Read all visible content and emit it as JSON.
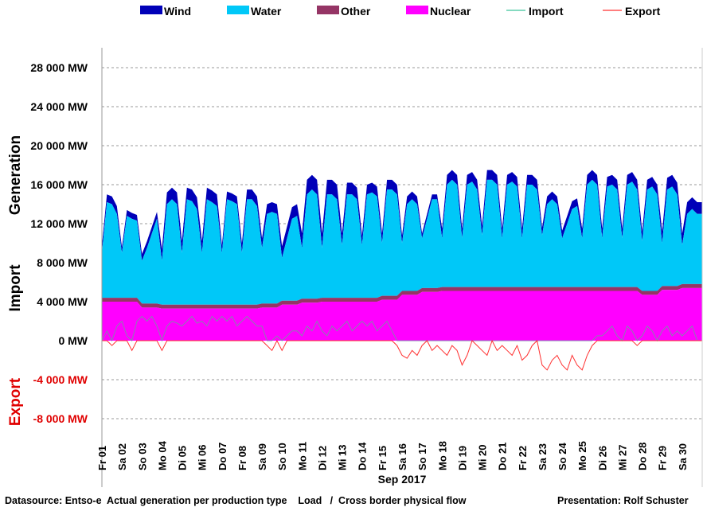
{
  "chart_data": {
    "type": "area",
    "xlabel": "Sep 2017",
    "y_unit": "MW",
    "ylim": [
      -8000,
      28000
    ],
    "yticks": [
      -8000,
      -4000,
      0,
      4000,
      8000,
      12000,
      16000,
      20000,
      24000,
      28000
    ],
    "ytick_labels": [
      "-8 000 MW",
      "-4 000 MW",
      "0 MW",
      "4 000 MW",
      "8 000 MW",
      "12 000 MW",
      "16 000 MW",
      "20 000 MW",
      "24 000 MW",
      "28 000 MW"
    ],
    "grid": true,
    "y_section_labels": {
      "generation": "Generation",
      "import": "Import",
      "export": "Export"
    },
    "day_labels": [
      "Fr 01",
      "Sa 02",
      "So 03",
      "Mo 04",
      "Di 05",
      "Mi 06",
      "Do 07",
      "Fr 08",
      "Sa 09",
      "So 10",
      "Mo 11",
      "Di 12",
      "Mi 13",
      "Do 14",
      "Fr 15",
      "Sa 16",
      "So 17",
      "Mo 18",
      "Di 19",
      "Mi 20",
      "Do 21",
      "Fr 22",
      "Sa 23",
      "So 24",
      "Mo 25",
      "Di 26",
      "Mi 27",
      "Do 28",
      "Fr 29",
      "Sa 30"
    ],
    "sample_hours": [
      0,
      6,
      12,
      18
    ],
    "legend": [
      {
        "name": "Wind",
        "kind": "area",
        "color": "#0000b8"
      },
      {
        "name": "Water",
        "kind": "area",
        "color": "#00c8f8"
      },
      {
        "name": "Other",
        "kind": "area",
        "color": "#953565"
      },
      {
        "name": "Nuclear",
        "kind": "area",
        "color": "#ff00ff"
      },
      {
        "name": "Import",
        "kind": "line",
        "color": "#3cc39a"
      },
      {
        "name": "Export",
        "kind": "line",
        "color": "#ff3030"
      }
    ],
    "legend_position": "top",
    "series": {
      "nuclear_daily": [
        4000,
        4000,
        3400,
        3300,
        3300,
        3300,
        3300,
        3300,
        3400,
        3700,
        3900,
        4000,
        4000,
        4000,
        4200,
        4700,
        5000,
        5100,
        5100,
        5100,
        5100,
        5100,
        5100,
        5100,
        5100,
        5100,
        5100,
        4700,
        5200,
        5400
      ],
      "other_daily": [
        400,
        400,
        400,
        400,
        400,
        400,
        400,
        400,
        400,
        400,
        400,
        400,
        400,
        400,
        400,
        400,
        400,
        400,
        400,
        400,
        400,
        400,
        400,
        400,
        400,
        400,
        400,
        400,
        400,
        400
      ],
      "water_stack_top_6h": [
        9000,
        14200,
        14000,
        13000,
        9000,
        12800,
        12500,
        12300,
        8200,
        9500,
        11000,
        12500,
        8200,
        14000,
        14500,
        14000,
        9000,
        14500,
        14300,
        13500,
        9000,
        14500,
        14200,
        13800,
        9000,
        14500,
        14300,
        14000,
        9000,
        14500,
        14500,
        13800,
        9500,
        13000,
        13200,
        13000,
        8500,
        10500,
        12500,
        12800,
        9500,
        15000,
        15500,
        15000,
        9500,
        15000,
        15000,
        14500,
        9800,
        15000,
        15000,
        14500,
        9800,
        15000,
        15200,
        14800,
        10000,
        15500,
        15500,
        15000,
        10000,
        14000,
        14500,
        14000,
        10500,
        12500,
        14500,
        14500,
        10500,
        16000,
        16500,
        16000,
        10500,
        16000,
        16300,
        15500,
        10800,
        16500,
        16500,
        16000,
        10500,
        16000,
        16300,
        15800,
        10500,
        16000,
        16000,
        15500,
        10800,
        14000,
        14500,
        14000,
        10500,
        12000,
        13500,
        13800,
        10500,
        16000,
        16500,
        16000,
        10500,
        15800,
        16000,
        15500,
        10500,
        16000,
        16300,
        15500,
        10200,
        15500,
        15800,
        15000,
        10000,
        15500,
        15800,
        15000,
        9800,
        13000,
        13500,
        13000
      ],
      "wind_daily": [
        800,
        600,
        700,
        1200,
        1200,
        1200,
        800,
        1000,
        1000,
        1200,
        1500,
        1500,
        1200,
        1000,
        1000,
        800,
        500,
        1000,
        1000,
        1000,
        1000,
        1000,
        800,
        800,
        1000,
        1000,
        1000,
        1000,
        1200,
        1200
      ],
      "net_flow_6h": [
        0,
        1000,
        -500,
        1500,
        2000,
        500,
        -1000,
        2000,
        2500,
        2000,
        2500,
        1500,
        -1000,
        1500,
        2000,
        1800,
        1500,
        2000,
        2500,
        1800,
        2000,
        1500,
        2500,
        2000,
        2500,
        2000,
        2500,
        1500,
        2000,
        2500,
        2000,
        1500,
        1500,
        -500,
        -1000,
        500,
        -1000,
        500,
        1000,
        1000,
        500,
        1500,
        1000,
        2000,
        1000,
        500,
        1500,
        1000,
        1500,
        2000,
        1000,
        1500,
        2000,
        1500,
        2000,
        1000,
        1500,
        2000,
        1000,
        -500,
        -1500,
        -1800,
        -1000,
        -1500,
        -500,
        0,
        -1000,
        -500,
        -1000,
        -1500,
        -500,
        -1000,
        -2500,
        -1500,
        0,
        -500,
        -1000,
        -1500,
        0,
        -1000,
        -500,
        -1000,
        -1500,
        -500,
        -2000,
        -1500,
        -500,
        0,
        -2500,
        -3000,
        -2000,
        -1500,
        -2500,
        -3000,
        -1500,
        -2500,
        -3000,
        -1500,
        -500,
        500,
        500,
        1000,
        1500,
        500,
        0,
        1500,
        1000,
        -500,
        500,
        1500,
        1000,
        0,
        1000,
        1500,
        500,
        1000,
        500,
        1000,
        1500,
        0
      ]
    }
  },
  "footer": {
    "datasource": "Datasource: Entso-e  Actual generation per production type    Load   /  Cross border physical flow",
    "presentation": "Presentation: Rolf Schuster"
  }
}
